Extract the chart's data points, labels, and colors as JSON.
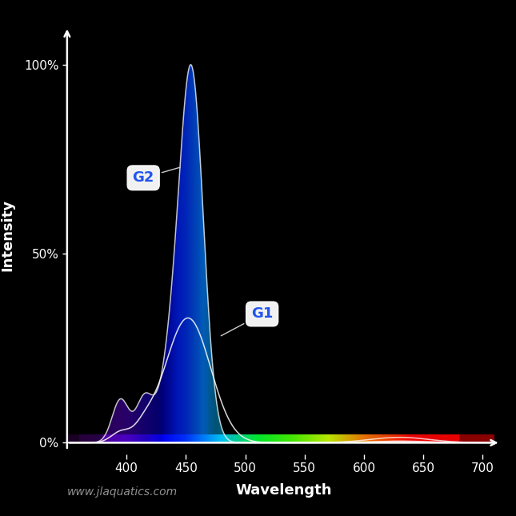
{
  "background_color": "#000000",
  "figure_size": [
    6.45,
    6.45
  ],
  "dpi": 100,
  "xlim": [
    350,
    715
  ],
  "ylim": [
    -0.03,
    1.13
  ],
  "xlabel": "Wavelength",
  "ylabel": "Intensity",
  "xlabel_color": "#ffffff",
  "ylabel_color": "#ffffff",
  "xlabel_fontsize": 13,
  "ylabel_fontsize": 13,
  "xticks": [
    400,
    450,
    500,
    550,
    600,
    650,
    700
  ],
  "ytick_vals": [
    0.0,
    0.5,
    1.0
  ],
  "ytick_labels": [
    "0%",
    "50%",
    "100%"
  ],
  "tick_color": "#ffffff",
  "tick_fontsize": 11,
  "axis_color": "#ffffff",
  "watermark": "www.jlaquatics.com",
  "watermark_color": "#aaaaaa",
  "watermark_fontsize": 10,
  "label_G2": "G2",
  "label_G1": "G1",
  "label_fontsize": 13,
  "annot_line_color": "#aaaaaa"
}
